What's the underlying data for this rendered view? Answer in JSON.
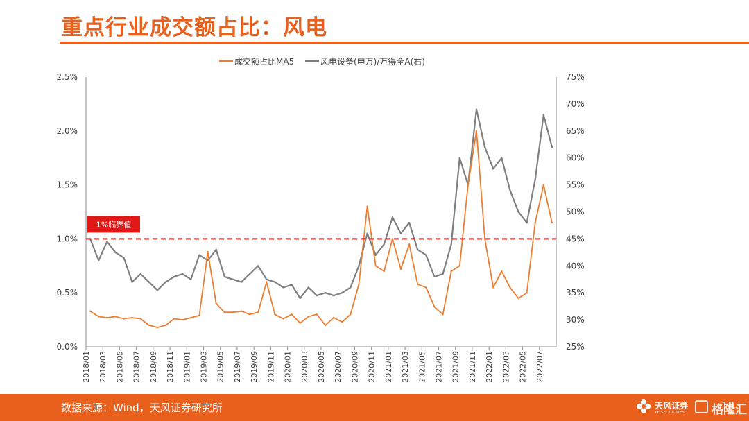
{
  "page": {
    "title": "重点行业成交额占比：风电",
    "source": "数据来源：Wind，天风证券研究所",
    "brand_name": "天风证券",
    "brand_subtitle": "TF SECURITIES",
    "page_number": "18",
    "watermark": "格隆汇"
  },
  "colors": {
    "accent": "#e8601c",
    "series_ma5": "#ed7d31",
    "series_ratio": "#7f7f7f",
    "threshold_line": "#e01818",
    "threshold_label_bg": "#e01818"
  },
  "chart_data": {
    "type": "line",
    "x_type": "date",
    "x_range": [
      "2018-01",
      "2022-08"
    ],
    "x_tick_labels": [
      "2018/01",
      "2018/03",
      "2018/05",
      "2018/07",
      "2018/09",
      "2018/11",
      "2019/01",
      "2019/03",
      "2019/05",
      "2019/07",
      "2019/09",
      "2019/11",
      "2020/01",
      "2020/03",
      "2020/05",
      "2020/07",
      "2020/09",
      "2020/11",
      "2021/01",
      "2021/03",
      "2021/05",
      "2021/07",
      "2021/09",
      "2021/11",
      "2022/01",
      "2022/03",
      "2022/05",
      "2022/07"
    ],
    "left_axis": {
      "ylim": [
        0,
        2.5
      ],
      "tick_values": [
        0,
        0.5,
        1.0,
        1.5,
        2.0,
        2.5
      ],
      "tick_labels": [
        "0.0%",
        "0.5%",
        "1.0%",
        "1.5%",
        "2.0%",
        "2.5%"
      ]
    },
    "right_axis": {
      "ylim": [
        25,
        75
      ],
      "tick_values": [
        25,
        30,
        35,
        40,
        45,
        50,
        55,
        60,
        65,
        70,
        75
      ],
      "tick_labels": [
        "25%",
        "30%",
        "35%",
        "40%",
        "45%",
        "50%",
        "55%",
        "60%",
        "65%",
        "70%",
        "75%"
      ]
    },
    "legend_position": "top",
    "grid": false,
    "series": [
      {
        "name": "成交额占比MA5",
        "axis": "left",
        "unit": "%",
        "x": [
          "2018-01",
          "2018-02",
          "2018-03",
          "2018-04",
          "2018-05",
          "2018-06",
          "2018-07",
          "2018-08",
          "2018-09",
          "2018-10",
          "2018-11",
          "2018-12",
          "2019-01",
          "2019-02",
          "2019-03",
          "2019-04",
          "2019-05",
          "2019-06",
          "2019-07",
          "2019-08",
          "2019-09",
          "2019-10",
          "2019-11",
          "2019-12",
          "2020-01",
          "2020-02",
          "2020-03",
          "2020-04",
          "2020-05",
          "2020-06",
          "2020-07",
          "2020-08",
          "2020-09",
          "2020-10",
          "2020-11",
          "2020-12",
          "2021-01",
          "2021-02",
          "2021-03",
          "2021-04",
          "2021-05",
          "2021-06",
          "2021-07",
          "2021-08",
          "2021-09",
          "2021-10",
          "2021-11",
          "2021-12",
          "2022-01",
          "2022-02",
          "2022-03",
          "2022-04",
          "2022-05",
          "2022-06",
          "2022-07",
          "2022-08"
        ],
        "values": [
          0.33,
          0.28,
          0.27,
          0.28,
          0.26,
          0.27,
          0.26,
          0.2,
          0.18,
          0.2,
          0.26,
          0.25,
          0.27,
          0.29,
          0.88,
          0.4,
          0.32,
          0.32,
          0.33,
          0.3,
          0.32,
          0.6,
          0.3,
          0.26,
          0.3,
          0.22,
          0.28,
          0.3,
          0.2,
          0.27,
          0.23,
          0.3,
          0.58,
          1.3,
          0.75,
          0.7,
          1.0,
          0.72,
          0.95,
          0.58,
          0.55,
          0.37,
          0.3,
          0.7,
          0.75,
          1.5,
          2.0,
          1.0,
          0.55,
          0.7,
          0.55,
          0.45,
          0.5,
          1.15,
          1.5,
          1.15
        ]
      },
      {
        "name": "风电设备(申万)/万得全A(右)",
        "axis": "right",
        "unit": "%",
        "x": [
          "2018-01",
          "2018-02",
          "2018-03",
          "2018-04",
          "2018-05",
          "2018-06",
          "2018-07",
          "2018-08",
          "2018-09",
          "2018-10",
          "2018-11",
          "2018-12",
          "2019-01",
          "2019-02",
          "2019-03",
          "2019-04",
          "2019-05",
          "2019-06",
          "2019-07",
          "2019-08",
          "2019-09",
          "2019-10",
          "2019-11",
          "2019-12",
          "2020-01",
          "2020-02",
          "2020-03",
          "2020-04",
          "2020-05",
          "2020-06",
          "2020-07",
          "2020-08",
          "2020-09",
          "2020-10",
          "2020-11",
          "2020-12",
          "2021-01",
          "2021-02",
          "2021-03",
          "2021-04",
          "2021-05",
          "2021-06",
          "2021-07",
          "2021-08",
          "2021-09",
          "2021-10",
          "2021-11",
          "2021-12",
          "2022-01",
          "2022-02",
          "2022-03",
          "2022-04",
          "2022-05",
          "2022-06",
          "2022-07",
          "2022-08"
        ],
        "values": [
          45.0,
          41.0,
          44.5,
          42.5,
          41.5,
          37.0,
          38.5,
          37.0,
          35.5,
          37.0,
          38.0,
          38.5,
          37.5,
          42.0,
          41.0,
          43.0,
          38.0,
          37.5,
          37.0,
          38.5,
          40.0,
          37.5,
          37.0,
          36.0,
          36.5,
          34.0,
          36.0,
          34.5,
          35.0,
          34.5,
          35.0,
          36.0,
          40.0,
          46.0,
          42.0,
          44.0,
          49.0,
          46.0,
          48.0,
          43.0,
          42.0,
          38.0,
          38.5,
          44.0,
          60.0,
          55.0,
          69.0,
          62.0,
          58.0,
          60.0,
          54.0,
          50.0,
          48.0,
          56.0,
          68.0,
          62.0
        ]
      }
    ],
    "annotations": [
      {
        "type": "hline",
        "axis": "left",
        "value": 1.0,
        "label": "1%临界值"
      }
    ]
  }
}
